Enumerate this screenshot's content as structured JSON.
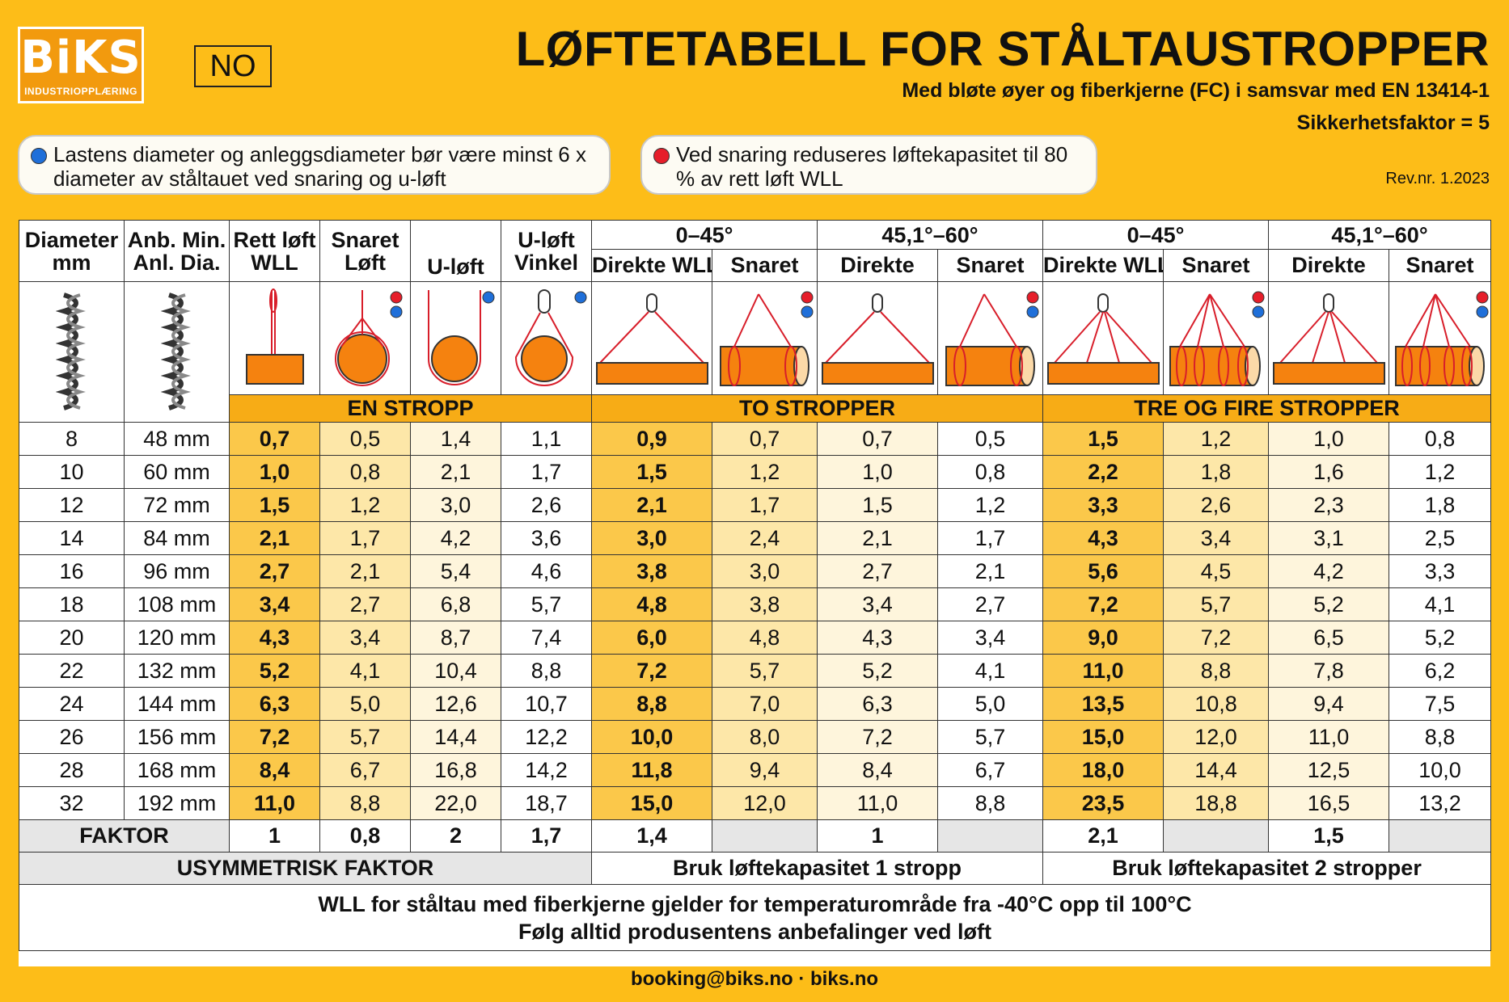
{
  "logo": {
    "text": "BiKS",
    "sub": "INDUSTRIOPPLÆRING"
  },
  "lang": "NO",
  "title": "LØFTETABELL FOR STÅLTAUSTROPPER",
  "subtitle": "Med bløte øyer og fiberkjerne (FC) i samsvar med EN 13414-1",
  "safety_factor": "Sikkerhetsfaktor = 5",
  "notes": [
    {
      "color": "#1F6FD9",
      "text": "Lastens diameter og anleggsdiameter bør være minst 6 x diameter av ståltauet ved snaring og u-løft"
    },
    {
      "color": "#E61E2A",
      "text": "Ved snaring reduseres løftekapasitet til 80 % av rett løft WLL"
    }
  ],
  "revision": "Rev.nr. 1.2023",
  "colors": {
    "background": "#FDBD18",
    "band": "#F7AC16",
    "red": "#E61E2A",
    "blue": "#1F6FD9",
    "load": "#F5820F"
  },
  "header": {
    "col1": [
      "Diameter",
      "mm"
    ],
    "col2": [
      "Anb. Min.",
      "Anl. Dia."
    ],
    "col3": [
      "Rett løft",
      "WLL"
    ],
    "col4": [
      "Snaret",
      "Løft"
    ],
    "col5": "U-løft",
    "col6": [
      "U-løft",
      "Vinkel"
    ],
    "angle_groups": [
      "0–45°",
      "45,1°–60°",
      "0–45°",
      "45,1°–60°"
    ],
    "sub": [
      "Direkte WLL",
      "Snaret",
      "Direkte",
      "Snaret",
      "Direkte WLL",
      "Snaret",
      "Direkte",
      "Snaret"
    ]
  },
  "icons": [
    "wire-rope-icon",
    "wire-rope-icon",
    "straight-lift-icon",
    "choke-lift-icon",
    "u-lift-icon",
    "u-lift-angle-icon",
    "two-leg-direct-icon",
    "two-leg-choke-icon",
    "two-leg-direct-icon",
    "two-leg-choke-icon",
    "multi-leg-direct-icon",
    "multi-leg-choke-icon",
    "multi-leg-direct-icon",
    "multi-leg-choke-icon"
  ],
  "bands": [
    "EN STROPP",
    "TO STROPPER",
    "TRE OG FIRE STROPPER"
  ],
  "rows": [
    [
      "8",
      "48 mm",
      "0,7",
      "0,5",
      "1,4",
      "1,1",
      "0,9",
      "0,7",
      "0,7",
      "0,5",
      "1,5",
      "1,2",
      "1,0",
      "0,8"
    ],
    [
      "10",
      "60 mm",
      "1,0",
      "0,8",
      "2,1",
      "1,7",
      "1,5",
      "1,2",
      "1,0",
      "0,8",
      "2,2",
      "1,8",
      "1,6",
      "1,2"
    ],
    [
      "12",
      "72 mm",
      "1,5",
      "1,2",
      "3,0",
      "2,6",
      "2,1",
      "1,7",
      "1,5",
      "1,2",
      "3,3",
      "2,6",
      "2,3",
      "1,8"
    ],
    [
      "14",
      "84 mm",
      "2,1",
      "1,7",
      "4,2",
      "3,6",
      "3,0",
      "2,4",
      "2,1",
      "1,7",
      "4,3",
      "3,4",
      "3,1",
      "2,5"
    ],
    [
      "16",
      "96 mm",
      "2,7",
      "2,1",
      "5,4",
      "4,6",
      "3,8",
      "3,0",
      "2,7",
      "2,1",
      "5,6",
      "4,5",
      "4,2",
      "3,3"
    ],
    [
      "18",
      "108 mm",
      "3,4",
      "2,7",
      "6,8",
      "5,7",
      "4,8",
      "3,8",
      "3,4",
      "2,7",
      "7,2",
      "5,7",
      "5,2",
      "4,1"
    ],
    [
      "20",
      "120 mm",
      "4,3",
      "3,4",
      "8,7",
      "7,4",
      "6,0",
      "4,8",
      "4,3",
      "3,4",
      "9,0",
      "7,2",
      "6,5",
      "5,2"
    ],
    [
      "22",
      "132 mm",
      "5,2",
      "4,1",
      "10,4",
      "8,8",
      "7,2",
      "5,7",
      "5,2",
      "4,1",
      "11,0",
      "8,8",
      "7,8",
      "6,2"
    ],
    [
      "24",
      "144 mm",
      "6,3",
      "5,0",
      "12,6",
      "10,7",
      "8,8",
      "7,0",
      "6,3",
      "5,0",
      "13,5",
      "10,8",
      "9,4",
      "7,5"
    ],
    [
      "26",
      "156 mm",
      "7,2",
      "5,7",
      "14,4",
      "12,2",
      "10,0",
      "8,0",
      "7,2",
      "5,7",
      "15,0",
      "12,0",
      "11,0",
      "8,8"
    ],
    [
      "28",
      "168 mm",
      "8,4",
      "6,7",
      "16,8",
      "14,2",
      "11,8",
      "9,4",
      "8,4",
      "6,7",
      "18,0",
      "14,4",
      "12,5",
      "10,0"
    ],
    [
      "32",
      "192 mm",
      "11,0",
      "8,8",
      "22,0",
      "18,7",
      "15,0",
      "12,0",
      "11,0",
      "8,8",
      "23,5",
      "18,8",
      "16,5",
      "13,2"
    ]
  ],
  "faktor": {
    "label": "FAKTOR",
    "values": [
      "1",
      "0,8",
      "2",
      "1,7",
      "1,4",
      "",
      "1",
      "",
      "2,1",
      "",
      "1,5",
      ""
    ]
  },
  "asym": [
    "USYMMETRISK FAKTOR",
    "Bruk løftekapasitet 1 stropp",
    "Bruk løftekapasitet 2 stropper"
  ],
  "footer": [
    "WLL for ståltau med fiberkjerne gjelder for temperaturområde fra -40°C opp til 100°C",
    "Følg alltid produsentens anbefalinger ved løft"
  ],
  "contact": "booking@biks.no · biks.no"
}
